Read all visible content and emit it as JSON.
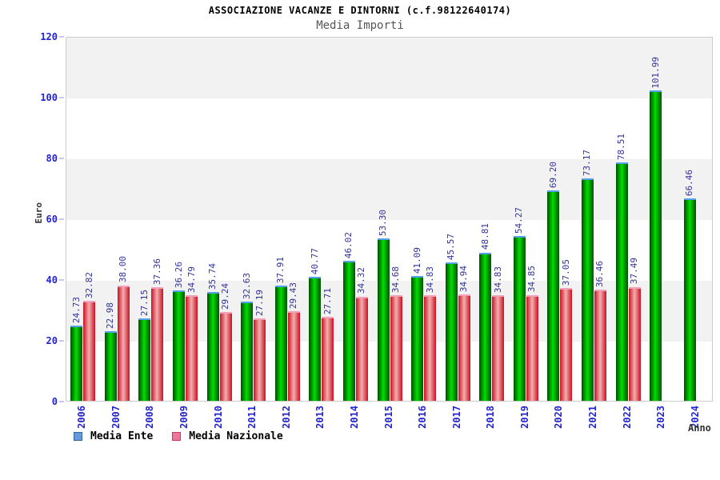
{
  "header": {
    "title": "ASSOCIAZIONE VACANZE E DINTORNI (c.f.98122640174)",
    "subtitle": "Media Importi"
  },
  "axes": {
    "y_title": "Euro",
    "x_title": "Anno",
    "y_ticks": [
      "0",
      "20",
      "40",
      "60",
      "80",
      "100",
      "120"
    ]
  },
  "legend": {
    "items": [
      {
        "label": "Media Ente",
        "swatch_color": "#6699dd"
      },
      {
        "label": "Media Nazionale",
        "swatch_color": "#ee7799"
      }
    ]
  },
  "colors": {
    "band_gray": "#f2f2f2",
    "plot_border": "#cccccc",
    "axis_label_blue": "#2424cc",
    "value_label_navy": "#333399",
    "bar_green_edge": "#004f00",
    "bar_green_center": "#00dd00",
    "bar_green_cap": "#55a0e8",
    "bar_red_edge": "#cc1022",
    "bar_red_center": "#f2afaf",
    "bar_red_cap": "#f4a0b8"
  },
  "chart_data": {
    "type": "bar",
    "title": "ASSOCIAZIONE VACANZE E DINTORNI (c.f.98122640174)",
    "subtitle": "Media Importi",
    "xlabel": "Anno",
    "ylabel": "Euro",
    "ylim": [
      0,
      120
    ],
    "y_step": 20,
    "grid": "alternating-horizontal-bands",
    "legend_position": "bottom-left",
    "categories": [
      "2006",
      "2007",
      "2008",
      "2009",
      "2010",
      "2011",
      "2012",
      "2013",
      "2014",
      "2015",
      "2016",
      "2017",
      "2018",
      "2019",
      "2020",
      "2021",
      "2022",
      "2023",
      "2024"
    ],
    "series": [
      {
        "name": "Media Ente",
        "values": [
          24.73,
          22.98,
          27.15,
          36.26,
          35.74,
          32.63,
          37.91,
          40.77,
          46.02,
          53.3,
          41.09,
          45.57,
          48.81,
          54.27,
          69.2,
          73.17,
          78.51,
          101.99,
          66.46
        ],
        "labels": [
          "24.73",
          "22.98",
          "27.15",
          "36.26",
          "35.74",
          "32.63",
          "37.91",
          "40.77",
          "46.02",
          "53.30",
          "41.09",
          "45.57",
          "48.81",
          "54.27",
          "69.20",
          "73.17",
          "78.51",
          "101.99",
          "66.46"
        ]
      },
      {
        "name": "Media Nazionale",
        "values": [
          32.82,
          38.0,
          37.36,
          34.79,
          29.24,
          27.19,
          29.43,
          27.71,
          34.32,
          34.68,
          34.83,
          34.94,
          34.83,
          34.85,
          37.05,
          36.46,
          37.49,
          null,
          null
        ],
        "labels": [
          "32.82",
          "38.00",
          "37.36",
          "34.79",
          "29.24",
          "27.19",
          "29.43",
          "27.71",
          "34.32",
          "34.68",
          "34.83",
          "34.94",
          "34.83",
          "34.85",
          "37.05",
          "36.46",
          "37.49",
          null,
          null
        ]
      }
    ]
  }
}
